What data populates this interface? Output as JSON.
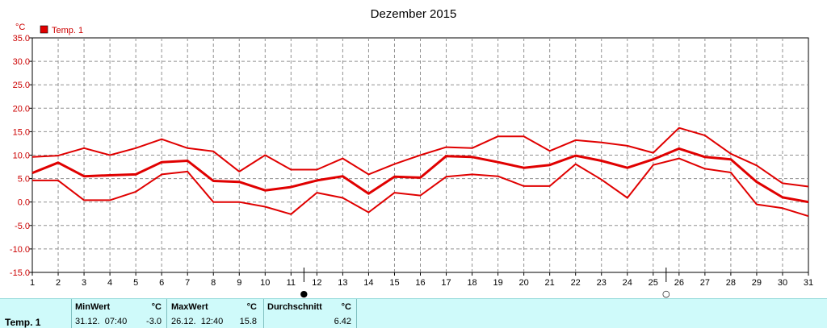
{
  "chart_data": {
    "type": "line",
    "title": "Dezember 2015",
    "ylabel": "°C",
    "ylim": [
      -15,
      35
    ],
    "yticks": [
      "35.0",
      "30.0",
      "25.0",
      "20.0",
      "15.0",
      "10.0",
      "5.0",
      "0.0",
      "-5.0",
      "-10.0",
      "-15.0"
    ],
    "categories": [
      "1",
      "2",
      "3",
      "4",
      "5",
      "6",
      "7",
      "8",
      "9",
      "10",
      "11",
      "12",
      "13",
      "14",
      "15",
      "16",
      "17",
      "18",
      "19",
      "20",
      "21",
      "22",
      "23",
      "24",
      "25",
      "26",
      "27",
      "28",
      "29",
      "30",
      "31"
    ],
    "legend": {
      "label": "Temp. 1",
      "color": "#e00000",
      "position": "top-left"
    },
    "grid": true,
    "markers": [
      {
        "day": 11.5,
        "symbol": "●"
      },
      {
        "day": 25.5,
        "symbol": "○"
      }
    ],
    "series": [
      {
        "role": "max",
        "values": [
          9.6,
          9.9,
          11.5,
          10.0,
          11.5,
          13.4,
          11.5,
          10.8,
          6.5,
          10.0,
          6.9,
          6.9,
          9.3,
          5.9,
          8.1,
          10.0,
          11.7,
          11.5,
          14.0,
          14.0,
          10.9,
          13.2,
          12.7,
          12.0,
          10.5,
          15.8,
          14.2,
          10.3,
          7.8,
          4.0,
          3.3
        ]
      },
      {
        "role": "avg",
        "values": [
          6.2,
          8.4,
          5.5,
          5.7,
          5.9,
          8.5,
          8.8,
          4.5,
          4.3,
          2.5,
          3.2,
          4.6,
          5.5,
          1.8,
          5.4,
          5.2,
          9.8,
          9.6,
          8.5,
          7.3,
          7.9,
          9.9,
          8.8,
          7.3,
          9.1,
          11.4,
          9.6,
          9.1,
          4.3,
          1.0,
          0.0
        ]
      },
      {
        "role": "min",
        "values": [
          4.6,
          4.6,
          0.4,
          0.4,
          2.2,
          5.9,
          6.5,
          0.0,
          0.0,
          -1.0,
          -2.6,
          2.0,
          0.9,
          -2.2,
          2.0,
          1.4,
          5.4,
          5.9,
          5.5,
          3.4,
          3.4,
          8.1,
          4.8,
          0.9,
          7.9,
          9.3,
          7.1,
          6.3,
          -0.5,
          -1.3,
          -3.0
        ]
      }
    ]
  },
  "stats": {
    "sensor_label": "Temp. 1",
    "min": {
      "header": "MinWert",
      "unit": "°C",
      "datetime": "31.12.  07:40",
      "value": "-3.0"
    },
    "max": {
      "header": "MaxWert",
      "unit": "°C",
      "datetime": "26.12.  12:40",
      "value": "15.8"
    },
    "avg": {
      "header": "Durchschnitt",
      "unit": "°C",
      "value": "6.42"
    }
  }
}
